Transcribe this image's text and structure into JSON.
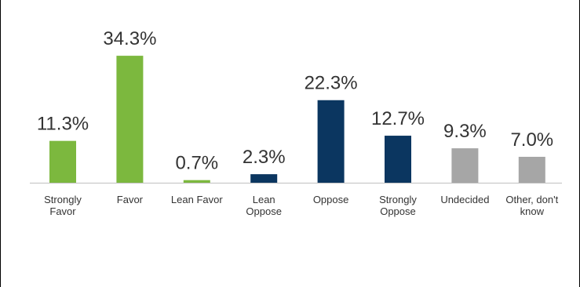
{
  "chart_data": {
    "type": "bar",
    "title": "",
    "xlabel": "",
    "ylabel": "",
    "categories": [
      [
        "Strongly",
        "Favor"
      ],
      [
        "Favor"
      ],
      [
        "Lean Favor"
      ],
      [
        "Lean",
        "Oppose"
      ],
      [
        "Oppose"
      ],
      [
        "Strongly",
        "Oppose"
      ],
      [
        "Undecided"
      ],
      [
        "Other, don't",
        "know"
      ]
    ],
    "values": [
      11.3,
      34.3,
      0.7,
      2.3,
      22.3,
      12.7,
      9.3,
      7.0
    ],
    "value_labels": [
      "11.3%",
      "34.3%",
      "0.7%",
      "2.3%",
      "22.3%",
      "12.7%",
      "9.3%",
      "7.0%"
    ],
    "colors": [
      "#7cb83e",
      "#7cb83e",
      "#7cb83e",
      "#0b3660",
      "#0b3660",
      "#0b3660",
      "#a6a6a6",
      "#a6a6a6"
    ],
    "ylim": [
      0,
      40
    ],
    "grid": false,
    "legend": "none"
  }
}
